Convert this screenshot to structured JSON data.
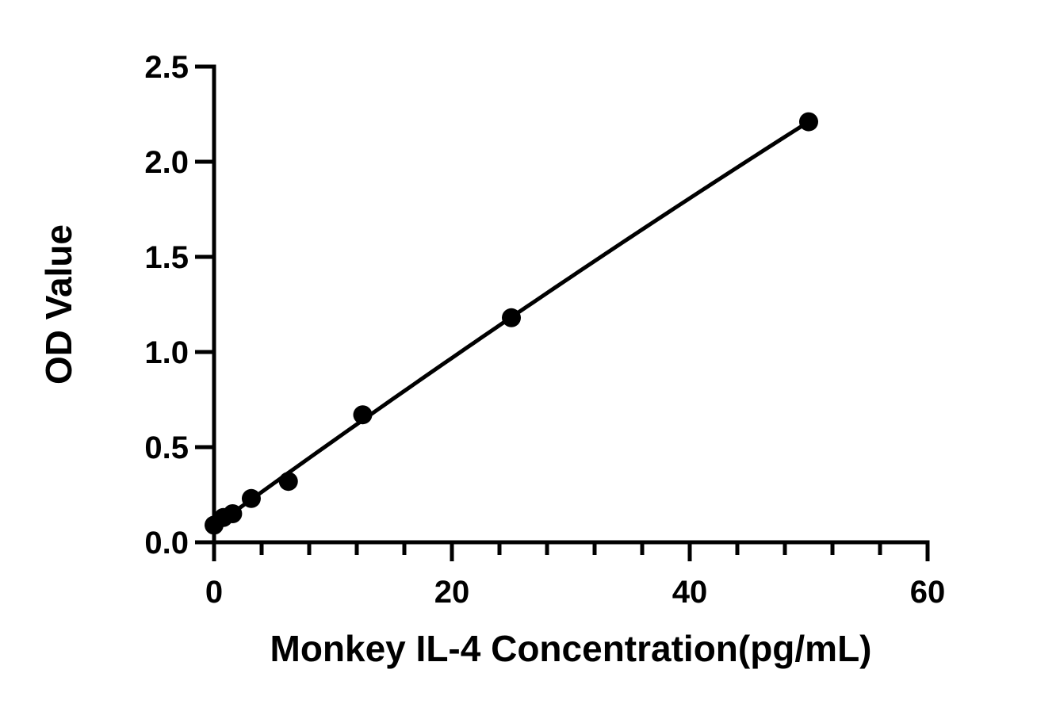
{
  "chart_data": {
    "type": "scatter",
    "title": "",
    "xlabel": "Monkey IL-4 Concentration(pg/mL)",
    "ylabel": "OD Value",
    "xlim": [
      0,
      60
    ],
    "ylim": [
      0,
      2.5
    ],
    "x_ticks": [
      "0",
      "20",
      "40",
      "60"
    ],
    "y_ticks": [
      "0.0",
      "0.5",
      "1.0",
      "1.5",
      "2.0",
      "2.5"
    ],
    "x_minor_step": 4,
    "grid": false,
    "legend": "none",
    "series": [
      {
        "x": [
          0,
          0.78,
          1.56,
          3.13,
          6.25,
          12.5,
          25,
          50
        ],
        "y": [
          0.09,
          0.13,
          0.15,
          0.23,
          0.32,
          0.67,
          1.18,
          2.21
        ],
        "color": "#000000",
        "fit_line": true
      }
    ]
  }
}
